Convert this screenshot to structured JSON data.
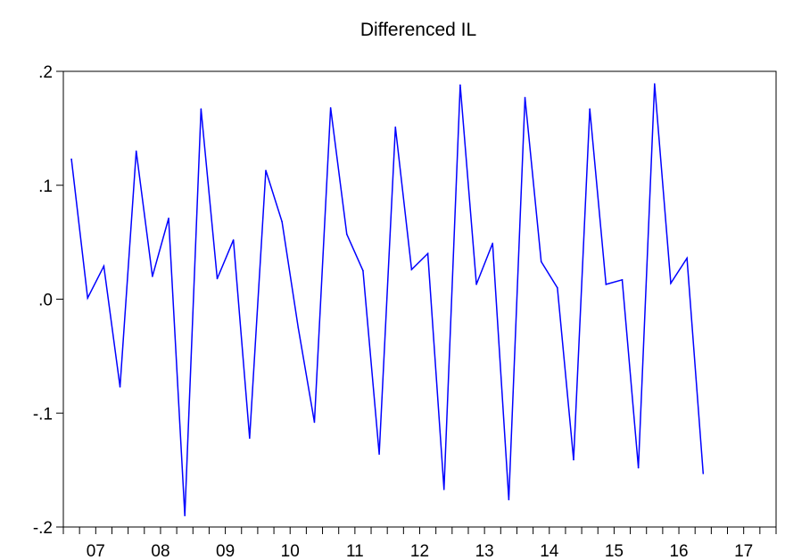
{
  "chart_data": {
    "type": "line",
    "title": "Differenced IL",
    "xlabel": "",
    "ylabel": "",
    "grid": false,
    "ylim": [
      -0.2,
      0.2
    ],
    "y_ticks": [
      {
        "value": 0.2,
        "label": ".2"
      },
      {
        "value": 0.1,
        "label": ".1"
      },
      {
        "value": 0.0,
        "label": ".0"
      },
      {
        "value": -0.1,
        "label": "-.1"
      },
      {
        "value": -0.2,
        "label": "-.2"
      }
    ],
    "x_tick_labels": [
      "07",
      "08",
      "09",
      "10",
      "11",
      "12",
      "13",
      "14",
      "15",
      "16",
      "17"
    ],
    "periods_per_year": 4,
    "first_period": {
      "year": "07",
      "quarter": 1
    },
    "series": [
      {
        "color": "#0000ff",
        "values": [
          0.123,
          0.001,
          0.029,
          -0.077,
          0.13,
          0.02,
          0.071,
          -0.19,
          0.167,
          0.018,
          0.052,
          -0.122,
          0.113,
          0.068,
          -0.025,
          -0.108,
          0.168,
          0.057,
          0.025,
          -0.136,
          0.151,
          0.026,
          0.04,
          -0.167,
          0.188,
          0.013,
          0.049,
          -0.176,
          0.177,
          0.033,
          0.01,
          -0.141,
          0.167,
          0.013,
          0.017,
          -0.148,
          0.189,
          0.014,
          0.036,
          -0.153
        ]
      }
    ]
  }
}
